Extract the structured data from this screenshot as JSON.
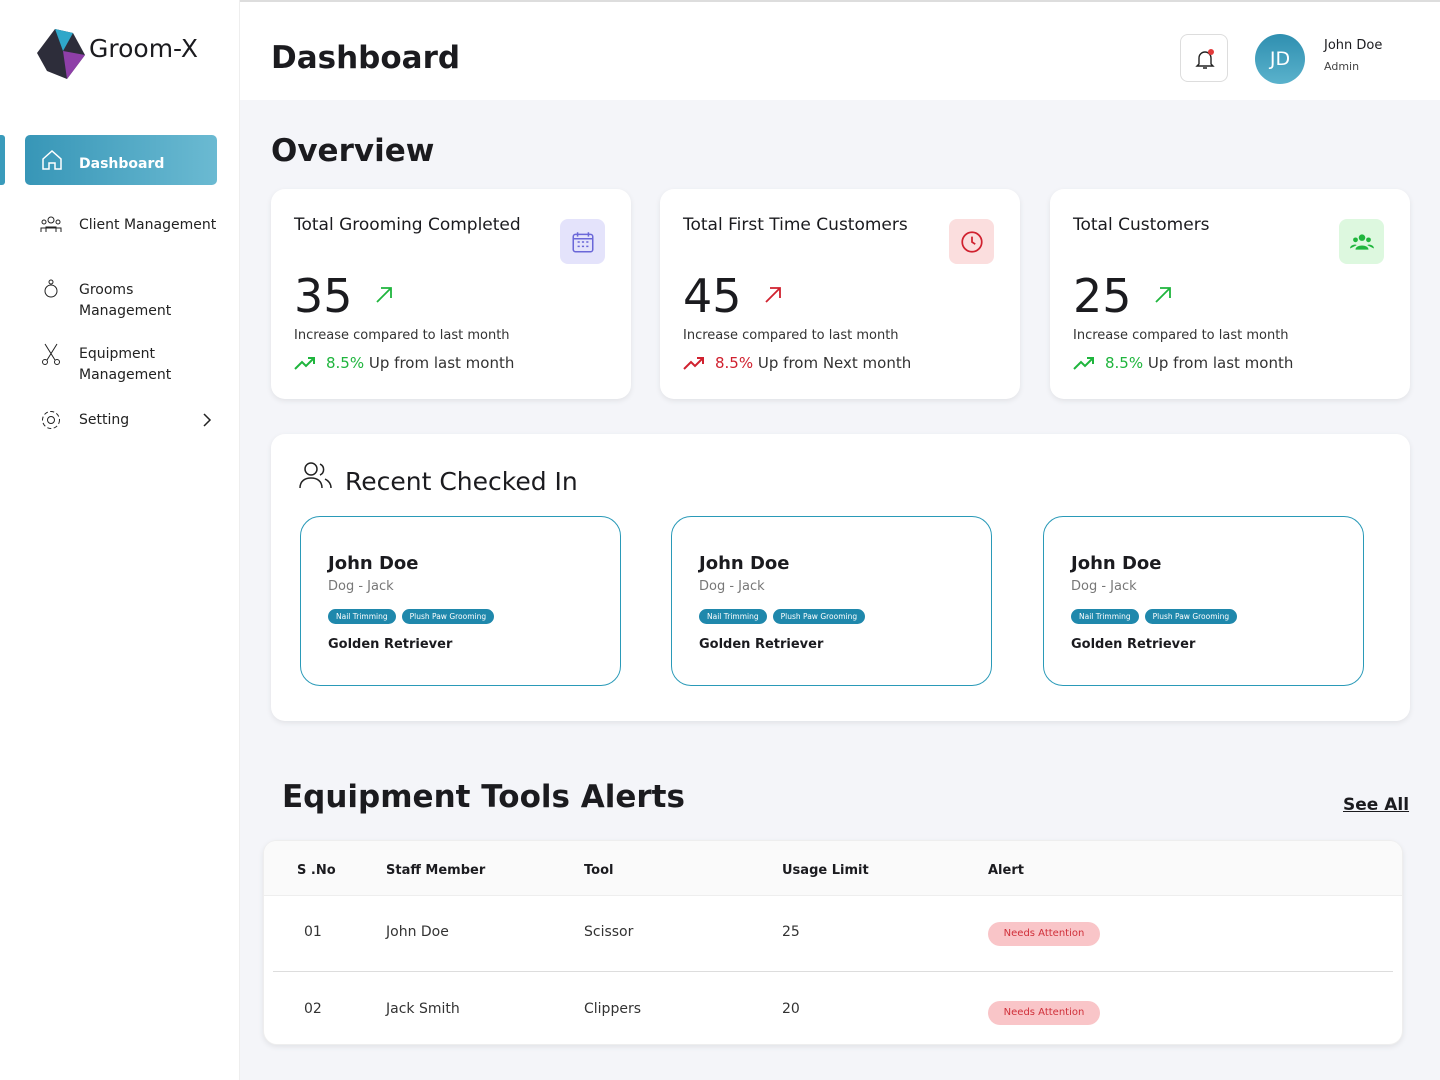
{
  "sidebar": {
    "brand": "Groom-X",
    "nav": [
      "Dashboard",
      "Client Management",
      "Grooms Management",
      "Equipment Management",
      "Setting"
    ]
  },
  "header": {
    "title": "Dashboard",
    "user": {
      "initials": "JD",
      "name": "John Doe",
      "role": "Admin"
    }
  },
  "overview": {
    "title": "Overview",
    "cards": [
      {
        "title": "Total Grooming Completed",
        "value": 35,
        "note": "Increase compared to last month",
        "change": "8.5%",
        "change_text": "Up from last month",
        "color": "#1fb53d"
      },
      {
        "title": "Total First Time Customers",
        "value": 45,
        "note": "Increase compared to last month",
        "change": "8.5%",
        "change_text": "Up from Next month",
        "color": "#d0212f"
      },
      {
        "title": "Total Customers",
        "value": 25,
        "note": "Increase compared to last month",
        "change": "8.5%",
        "change_text": "Up from last month",
        "color": "#1fb53d"
      }
    ]
  },
  "recent": {
    "title": "Recent Checked In",
    "cards": [
      {
        "name": "John Doe",
        "pet": "Dog - Jack",
        "tags": [
          "Nail Trimming",
          "Plush Paw Grooming"
        ],
        "breed": "Golden Retriever"
      },
      {
        "name": "John Doe",
        "pet": "Dog - Jack",
        "tags": [
          "Nail Trimming",
          "Plush Paw Grooming"
        ],
        "breed": "Golden Retriever"
      },
      {
        "name": "John Doe",
        "pet": "Dog - Jack",
        "tags": [
          "Nail Trimming",
          "Plush Paw Grooming"
        ],
        "breed": "Golden Retriever"
      }
    ]
  },
  "alerts": {
    "title": "Equipment Tools Alerts",
    "see_all": "See All",
    "table": {
      "columns": [
        "S .No",
        "Staff Member",
        "Tool",
        "Usage Limit",
        "Alert"
      ],
      "rows": [
        [
          "01",
          "John Doe",
          "Scissor",
          25,
          "Needs Attention"
        ],
        [
          "02",
          "Jack Smith",
          "Clippers",
          20,
          "Needs Attention"
        ]
      ]
    }
  }
}
